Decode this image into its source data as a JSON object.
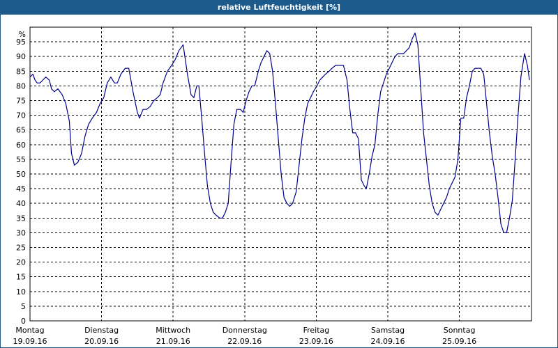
{
  "chart_data": {
    "type": "line",
    "title": "relative Luftfeuchtigkeit [%]",
    "ylabel": "%",
    "xlabel": "",
    "ylim": [
      0,
      100
    ],
    "yticks": [
      0,
      5,
      10,
      15,
      20,
      25,
      30,
      35,
      40,
      45,
      50,
      55,
      60,
      65,
      70,
      75,
      80,
      85,
      90,
      95
    ],
    "grid": true,
    "days": [
      {
        "weekday": "Montag",
        "date": "19.09.16"
      },
      {
        "weekday": "Dienstag",
        "date": "20.09.16"
      },
      {
        "weekday": "Mittwoch",
        "date": "21.09.16"
      },
      {
        "weekday": "Donnerstag",
        "date": "22.09.16"
      },
      {
        "weekday": "Freitag",
        "date": "23.09.16"
      },
      {
        "weekday": "Samstag",
        "date": "24.09.16"
      },
      {
        "weekday": "Sonntag",
        "date": "25.09.16"
      }
    ],
    "series": [
      {
        "color": "#00008b",
        "x_unit": "days since Montag 19.09.16 00:00",
        "points": [
          [
            0.0,
            83
          ],
          [
            0.04,
            84
          ],
          [
            0.07,
            82
          ],
          [
            0.1,
            81
          ],
          [
            0.14,
            81
          ],
          [
            0.18,
            82
          ],
          [
            0.22,
            83
          ],
          [
            0.27,
            82
          ],
          [
            0.3,
            79
          ],
          [
            0.34,
            78
          ],
          [
            0.39,
            79
          ],
          [
            0.45,
            77
          ],
          [
            0.5,
            74
          ],
          [
            0.55,
            68
          ],
          [
            0.58,
            57
          ],
          [
            0.62,
            53
          ],
          [
            0.67,
            54
          ],
          [
            0.72,
            57
          ],
          [
            0.77,
            63
          ],
          [
            0.82,
            67
          ],
          [
            0.87,
            69
          ],
          [
            0.93,
            71
          ],
          [
            0.98,
            74
          ],
          [
            1.03,
            76
          ],
          [
            1.08,
            81
          ],
          [
            1.13,
            83
          ],
          [
            1.18,
            81
          ],
          [
            1.22,
            81
          ],
          [
            1.27,
            84
          ],
          [
            1.33,
            86
          ],
          [
            1.38,
            86
          ],
          [
            1.44,
            78
          ],
          [
            1.5,
            71
          ],
          [
            1.53,
            69
          ],
          [
            1.58,
            72
          ],
          [
            1.63,
            72
          ],
          [
            1.68,
            73
          ],
          [
            1.73,
            75
          ],
          [
            1.78,
            76
          ],
          [
            1.82,
            77
          ],
          [
            1.86,
            81
          ],
          [
            1.92,
            85
          ],
          [
            1.98,
            87
          ],
          [
            2.03,
            89
          ],
          [
            2.08,
            92
          ],
          [
            2.14,
            94
          ],
          [
            2.2,
            84
          ],
          [
            2.25,
            77
          ],
          [
            2.29,
            76
          ],
          [
            2.33,
            80
          ],
          [
            2.36,
            80
          ],
          [
            2.4,
            69
          ],
          [
            2.44,
            57
          ],
          [
            2.48,
            46
          ],
          [
            2.52,
            40
          ],
          [
            2.56,
            37
          ],
          [
            2.6,
            36
          ],
          [
            2.65,
            35
          ],
          [
            2.69,
            35
          ],
          [
            2.73,
            37
          ],
          [
            2.77,
            40
          ],
          [
            2.81,
            54
          ],
          [
            2.85,
            67
          ],
          [
            2.89,
            72
          ],
          [
            2.94,
            72
          ],
          [
            2.98,
            71
          ],
          [
            3.02,
            75
          ],
          [
            3.06,
            78
          ],
          [
            3.1,
            80
          ],
          [
            3.14,
            80
          ],
          [
            3.19,
            85
          ],
          [
            3.23,
            88
          ],
          [
            3.27,
            90
          ],
          [
            3.31,
            92
          ],
          [
            3.35,
            91
          ],
          [
            3.39,
            85
          ],
          [
            3.43,
            74
          ],
          [
            3.47,
            62
          ],
          [
            3.51,
            50
          ],
          [
            3.55,
            42
          ],
          [
            3.59,
            40
          ],
          [
            3.63,
            39
          ],
          [
            3.67,
            40
          ],
          [
            3.72,
            44
          ],
          [
            3.76,
            53
          ],
          [
            3.8,
            62
          ],
          [
            3.84,
            69
          ],
          [
            3.88,
            74
          ],
          [
            3.92,
            76
          ],
          [
            3.96,
            78
          ],
          [
            4.01,
            80
          ],
          [
            4.05,
            82
          ],
          [
            4.09,
            83
          ],
          [
            4.13,
            84
          ],
          [
            4.18,
            85
          ],
          [
            4.22,
            86
          ],
          [
            4.27,
            87
          ],
          [
            4.33,
            87
          ],
          [
            4.38,
            87
          ],
          [
            4.43,
            82
          ],
          [
            4.47,
            72
          ],
          [
            4.51,
            64
          ],
          [
            4.55,
            64
          ],
          [
            4.59,
            62
          ],
          [
            4.63,
            48
          ],
          [
            4.67,
            46
          ],
          [
            4.7,
            45
          ],
          [
            4.74,
            50
          ],
          [
            4.78,
            56
          ],
          [
            4.82,
            60
          ],
          [
            4.86,
            70
          ],
          [
            4.9,
            78
          ],
          [
            4.94,
            81
          ],
          [
            4.98,
            84
          ],
          [
            5.02,
            86
          ],
          [
            5.06,
            88
          ],
          [
            5.1,
            90
          ],
          [
            5.14,
            91
          ],
          [
            5.18,
            91
          ],
          [
            5.22,
            91
          ],
          [
            5.26,
            92
          ],
          [
            5.3,
            93
          ],
          [
            5.34,
            96
          ],
          [
            5.38,
            98
          ],
          [
            5.42,
            94
          ],
          [
            5.46,
            79
          ],
          [
            5.5,
            64
          ],
          [
            5.54,
            55
          ],
          [
            5.58,
            46
          ],
          [
            5.62,
            40
          ],
          [
            5.66,
            37
          ],
          [
            5.7,
            36
          ],
          [
            5.74,
            38
          ],
          [
            5.78,
            40
          ],
          [
            5.82,
            42
          ],
          [
            5.86,
            45
          ],
          [
            5.9,
            47
          ],
          [
            5.94,
            49
          ],
          [
            5.98,
            55
          ],
          [
            6.02,
            69
          ],
          [
            6.06,
            69
          ],
          [
            6.1,
            76
          ],
          [
            6.14,
            80
          ],
          [
            6.18,
            85
          ],
          [
            6.22,
            86
          ],
          [
            6.26,
            86
          ],
          [
            6.3,
            86
          ],
          [
            6.34,
            84
          ],
          [
            6.38,
            74
          ],
          [
            6.42,
            64
          ],
          [
            6.46,
            56
          ],
          [
            6.5,
            50
          ],
          [
            6.54,
            42
          ],
          [
            6.58,
            33
          ],
          [
            6.62,
            30
          ],
          [
            6.66,
            30
          ],
          [
            6.7,
            35
          ],
          [
            6.74,
            41
          ],
          [
            6.78,
            55
          ],
          [
            6.82,
            70
          ],
          [
            6.86,
            83
          ],
          [
            6.91,
            91
          ],
          [
            6.95,
            87
          ],
          [
            6.98,
            82
          ]
        ]
      }
    ]
  }
}
